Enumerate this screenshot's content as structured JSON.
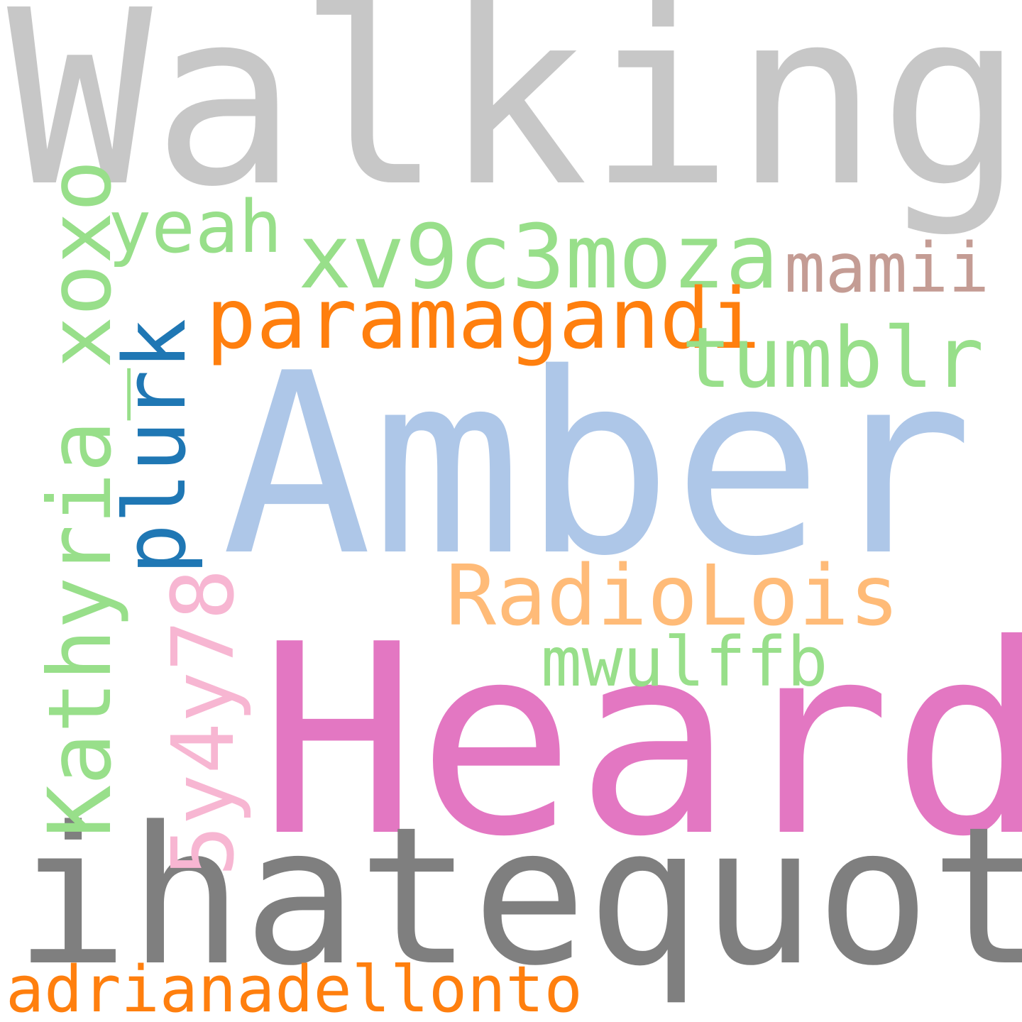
{
  "words": {
    "walking": {
      "text": "Walking",
      "color": "#c7c7c7"
    },
    "amber": {
      "text": "Amber",
      "color": "#aec7e8"
    },
    "heard": {
      "text": "Heard",
      "color": "#e377c2"
    },
    "ihatequotes": {
      "text": "ihatequotes",
      "color": "#7f7f7f"
    },
    "xv9c3moza": {
      "text": "xv9c3moza",
      "color": "#98df8a"
    },
    "paramagandi": {
      "text": "paramagandi",
      "color": "#ff7f0e"
    },
    "tumblr": {
      "text": "tumblr",
      "color": "#98df8a"
    },
    "mamii": {
      "text": "mamii",
      "color": "#c49c94"
    },
    "yeah": {
      "text": "yeah",
      "color": "#98df8a"
    },
    "kathyria_xoxo": {
      "text": "Kathyria_xoxo",
      "color": "#98df8a"
    },
    "plurk": {
      "text": "plurk",
      "color": "#1f77b4"
    },
    "radiolois": {
      "text": "RadioLois",
      "color": "#ffbb78"
    },
    "mwulffb": {
      "text": "mwulffb",
      "color": "#98df8a"
    },
    "5y4y78": {
      "text": "5y4y78",
      "color": "#f7b6d2"
    },
    "adrianadellonto": {
      "text": "adrianadellonto",
      "color": "#ff7f0e"
    }
  }
}
